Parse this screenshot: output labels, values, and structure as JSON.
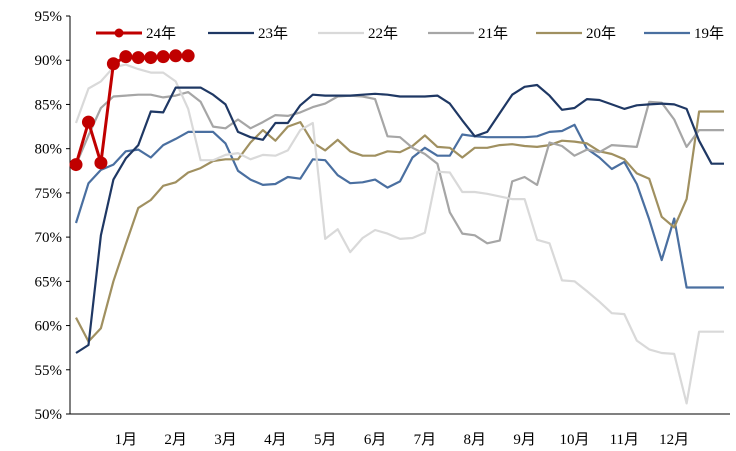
{
  "chart_data": {
    "type": "line",
    "title": "",
    "xlabel": "",
    "ylabel": "",
    "ylim": [
      50,
      95
    ],
    "y_tick_values": [
      50,
      55,
      60,
      65,
      70,
      75,
      80,
      85,
      90,
      95
    ],
    "y_tick_labels": [
      "50%",
      "55%",
      "60%",
      "65%",
      "70%",
      "75%",
      "80%",
      "85%",
      "90%",
      "95%"
    ],
    "x_domain": [
      0,
      52
    ],
    "x_tick_positions": [
      4,
      8,
      12,
      16,
      20,
      24,
      28,
      32,
      36,
      40,
      44,
      48
    ],
    "x_tick_labels": [
      "1月",
      "2月",
      "3月",
      "4月",
      "5月",
      "6月",
      "7月",
      "8月",
      "9月",
      "10月",
      "11月",
      "12月"
    ],
    "legend_position": "top",
    "grid": false,
    "series": [
      {
        "name": "24年",
        "color": "#c00000",
        "markers": true,
        "x": [
          0,
          1,
          2,
          3,
          4,
          5,
          6,
          7,
          8,
          9
        ],
        "values": [
          78.2,
          83.0,
          78.4,
          89.6,
          90.4,
          90.3,
          90.3,
          90.4,
          90.5,
          90.5
        ]
      },
      {
        "name": "23年",
        "color": "#1f3864",
        "x": [
          0,
          1,
          2,
          3,
          4,
          5,
          6,
          7,
          8,
          9,
          10,
          11,
          12,
          13,
          14,
          15,
          16,
          17,
          18,
          19,
          20,
          21,
          22,
          23,
          24,
          25,
          26,
          27,
          28,
          29,
          30,
          31,
          32,
          33,
          34,
          35,
          36,
          37,
          38,
          39,
          40,
          41,
          42,
          43,
          44,
          45,
          46,
          47,
          48,
          49,
          50,
          51,
          52
        ],
        "values": [
          56.9,
          57.8,
          70.2,
          76.5,
          78.9,
          80.4,
          84.2,
          84.1,
          86.9,
          86.9,
          86.9,
          86.1,
          85.0,
          81.9,
          81.3,
          81.0,
          82.9,
          82.9,
          84.9,
          86.1,
          86.0,
          86.0,
          86.0,
          86.1,
          86.2,
          86.1,
          85.9,
          85.9,
          85.9,
          86.0,
          85.1,
          83.2,
          81.4,
          81.9,
          84.0,
          86.1,
          87.0,
          87.2,
          86.0,
          84.4,
          84.6,
          85.6,
          85.5,
          85.0,
          84.5,
          84.9,
          85.0,
          85.1,
          85.0,
          84.5,
          80.9,
          78.3,
          78.3
        ]
      },
      {
        "name": "22年",
        "color": "#d9d9d9",
        "x": [
          0,
          1,
          2,
          3,
          4,
          5,
          6,
          7,
          8,
          9,
          10,
          11,
          12,
          13,
          14,
          15,
          16,
          17,
          18,
          19,
          20,
          21,
          22,
          23,
          24,
          25,
          26,
          27,
          28,
          29,
          30,
          31,
          32,
          33,
          34,
          35,
          36,
          37,
          38,
          39,
          40,
          41,
          42,
          43,
          44,
          45,
          46,
          47,
          48,
          49,
          50,
          51,
          52
        ],
        "values": [
          82.9,
          86.8,
          87.6,
          89.2,
          89.5,
          89.0,
          88.6,
          88.6,
          87.6,
          84.5,
          78.7,
          78.7,
          79.3,
          79.5,
          78.8,
          79.3,
          79.2,
          79.8,
          82.1,
          82.9,
          69.8,
          70.9,
          68.3,
          69.9,
          70.8,
          70.4,
          69.8,
          69.9,
          70.5,
          77.4,
          77.3,
          75.1,
          75.1,
          74.9,
          74.6,
          74.3,
          74.3,
          69.7,
          69.3,
          65.1,
          65.0,
          63.9,
          62.7,
          61.4,
          61.3,
          58.3,
          57.3,
          56.9,
          56.8,
          51.2,
          59.3,
          59.3,
          59.3
        ]
      },
      {
        "name": "21年",
        "color": "#a6a6a6",
        "x": [
          0,
          1,
          2,
          3,
          4,
          5,
          6,
          7,
          8,
          9,
          10,
          11,
          12,
          13,
          14,
          15,
          16,
          17,
          18,
          19,
          20,
          21,
          22,
          23,
          24,
          25,
          26,
          27,
          28,
          29,
          30,
          31,
          32,
          33,
          34,
          35,
          36,
          37,
          38,
          39,
          40,
          41,
          42,
          43,
          44,
          45,
          46,
          47,
          48,
          49,
          50,
          51,
          52
        ],
        "values": [
          78.2,
          81.5,
          84.6,
          85.9,
          86.0,
          86.1,
          86.1,
          85.8,
          86.0,
          86.4,
          85.3,
          82.5,
          82.3,
          83.3,
          82.3,
          83.0,
          83.8,
          83.7,
          84.1,
          84.7,
          85.1,
          85.9,
          86.0,
          85.9,
          85.6,
          81.4,
          81.3,
          80.1,
          79.4,
          78.3,
          72.8,
          70.4,
          70.2,
          69.3,
          69.6,
          76.3,
          76.8,
          75.9,
          80.7,
          80.3,
          79.2,
          79.9,
          79.6,
          80.4,
          80.3,
          80.2,
          85.3,
          85.2,
          83.3,
          80.2,
          82.1,
          82.1,
          82.1
        ]
      },
      {
        "name": "20年",
        "color": "#a09060",
        "x": [
          0,
          1,
          2,
          3,
          4,
          5,
          6,
          7,
          8,
          9,
          10,
          11,
          12,
          13,
          14,
          15,
          16,
          17,
          18,
          19,
          20,
          21,
          22,
          23,
          24,
          25,
          26,
          27,
          28,
          29,
          30,
          31,
          32,
          33,
          34,
          35,
          36,
          37,
          38,
          39,
          40,
          41,
          42,
          43,
          44,
          45,
          46,
          47,
          48,
          49,
          50,
          51,
          52
        ],
        "values": [
          60.9,
          58.2,
          59.7,
          65.0,
          69.2,
          73.3,
          74.2,
          75.8,
          76.2,
          77.3,
          77.8,
          78.6,
          78.8,
          78.8,
          80.7,
          82.1,
          80.9,
          82.5,
          83.0,
          80.7,
          79.8,
          81.0,
          79.7,
          79.2,
          79.2,
          79.7,
          79.6,
          80.3,
          81.5,
          80.2,
          80.1,
          79.0,
          80.1,
          80.1,
          80.4,
          80.5,
          80.3,
          80.2,
          80.4,
          80.9,
          80.8,
          80.6,
          79.7,
          79.4,
          78.8,
          77.2,
          76.6,
          72.3,
          71.1,
          74.3,
          84.2,
          84.2,
          84.2
        ]
      },
      {
        "name": "19年",
        "color": "#4a6fa0",
        "x": [
          0,
          1,
          2,
          3,
          4,
          5,
          6,
          7,
          8,
          9,
          10,
          11,
          12,
          13,
          14,
          15,
          16,
          17,
          18,
          19,
          20,
          21,
          22,
          23,
          24,
          25,
          26,
          27,
          28,
          29,
          30,
          31,
          32,
          33,
          34,
          35,
          36,
          37,
          38,
          39,
          40,
          41,
          42,
          43,
          44,
          45,
          46,
          47,
          48,
          49,
          50,
          51,
          52
        ],
        "values": [
          71.6,
          76.1,
          77.6,
          78.2,
          79.7,
          79.9,
          79.0,
          80.4,
          81.1,
          81.9,
          81.9,
          81.9,
          80.6,
          77.5,
          76.5,
          75.9,
          76.0,
          76.8,
          76.6,
          78.8,
          78.7,
          77.0,
          76.1,
          76.2,
          76.5,
          75.6,
          76.3,
          79.0,
          80.1,
          79.2,
          79.2,
          81.6,
          81.4,
          81.3,
          81.3,
          81.3,
          81.3,
          81.4,
          81.9,
          82.0,
          82.7,
          80.0,
          79.0,
          77.7,
          78.5,
          76.0,
          72.0,
          67.4,
          72.1,
          64.3,
          64.3,
          64.3,
          64.3
        ]
      }
    ]
  }
}
